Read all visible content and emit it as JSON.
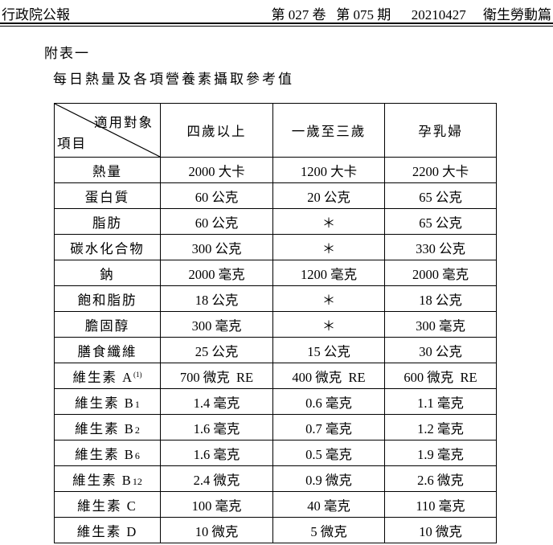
{
  "header": {
    "publisher": "行政院公報",
    "volume_issue": "第 027 卷   第 075 期",
    "date": "20210427",
    "section": "衛生勞動篇"
  },
  "annex_label": "附表一",
  "table_title": "每日熱量及各項營養素攝取參考值",
  "table": {
    "corner_top": "適用對象",
    "corner_bottom": "項目",
    "columns": [
      "四歲以上",
      "一歲至三歲",
      "孕乳婦"
    ],
    "rows": [
      {
        "item": "熱量",
        "suffix": "",
        "values": [
          "2000 大卡",
          "1200 大卡",
          "2200 大卡"
        ]
      },
      {
        "item": "蛋白質",
        "suffix": "",
        "values": [
          "60 公克",
          "20 公克",
          "65 公克"
        ]
      },
      {
        "item": "脂肪",
        "suffix": "",
        "values": [
          "60 公克",
          "＊",
          "65 公克"
        ]
      },
      {
        "item": "碳水化合物",
        "suffix": "",
        "values": [
          "300 公克",
          "＊",
          "330 公克"
        ]
      },
      {
        "item": "鈉",
        "suffix": "",
        "values": [
          "2000 毫克",
          "1200 毫克",
          "2000 毫克"
        ]
      },
      {
        "item": "飽和脂肪",
        "suffix": "",
        "values": [
          "18 公克",
          "＊",
          "18 公克"
        ]
      },
      {
        "item": "膽固醇",
        "suffix": "",
        "values": [
          "300 毫克",
          "＊",
          "300 毫克"
        ]
      },
      {
        "item": "膳食纖維",
        "suffix": "",
        "values": [
          "25 公克",
          "15 公克",
          "30 公克"
        ]
      },
      {
        "item": "維生素 A",
        "suffix": "(1)",
        "values": [
          "700 微克  RE",
          "400 微克  RE",
          "600 微克  RE"
        ]
      },
      {
        "item": "維生素 B",
        "suffix": "1",
        "values": [
          "1.4 毫克",
          "0.6 毫克",
          "1.1 毫克"
        ]
      },
      {
        "item": "維生素 B",
        "suffix": "2",
        "values": [
          "1.6 毫克",
          "0.7 毫克",
          "1.2 毫克"
        ]
      },
      {
        "item": "維生素 B",
        "suffix": "6",
        "values": [
          "1.6 毫克",
          "0.5 毫克",
          "1.9 毫克"
        ]
      },
      {
        "item": "維生素 B",
        "suffix": "12",
        "values": [
          "2.4 微克",
          "0.9 微克",
          "2.6 微克"
        ]
      },
      {
        "item": "維生素 C",
        "suffix": "",
        "values": [
          "100 毫克",
          "40 毫克",
          "110 毫克"
        ]
      },
      {
        "item": "維生素 D",
        "suffix": "",
        "values": [
          "10 微克",
          "5 微克",
          "10 微克"
        ]
      }
    ]
  }
}
